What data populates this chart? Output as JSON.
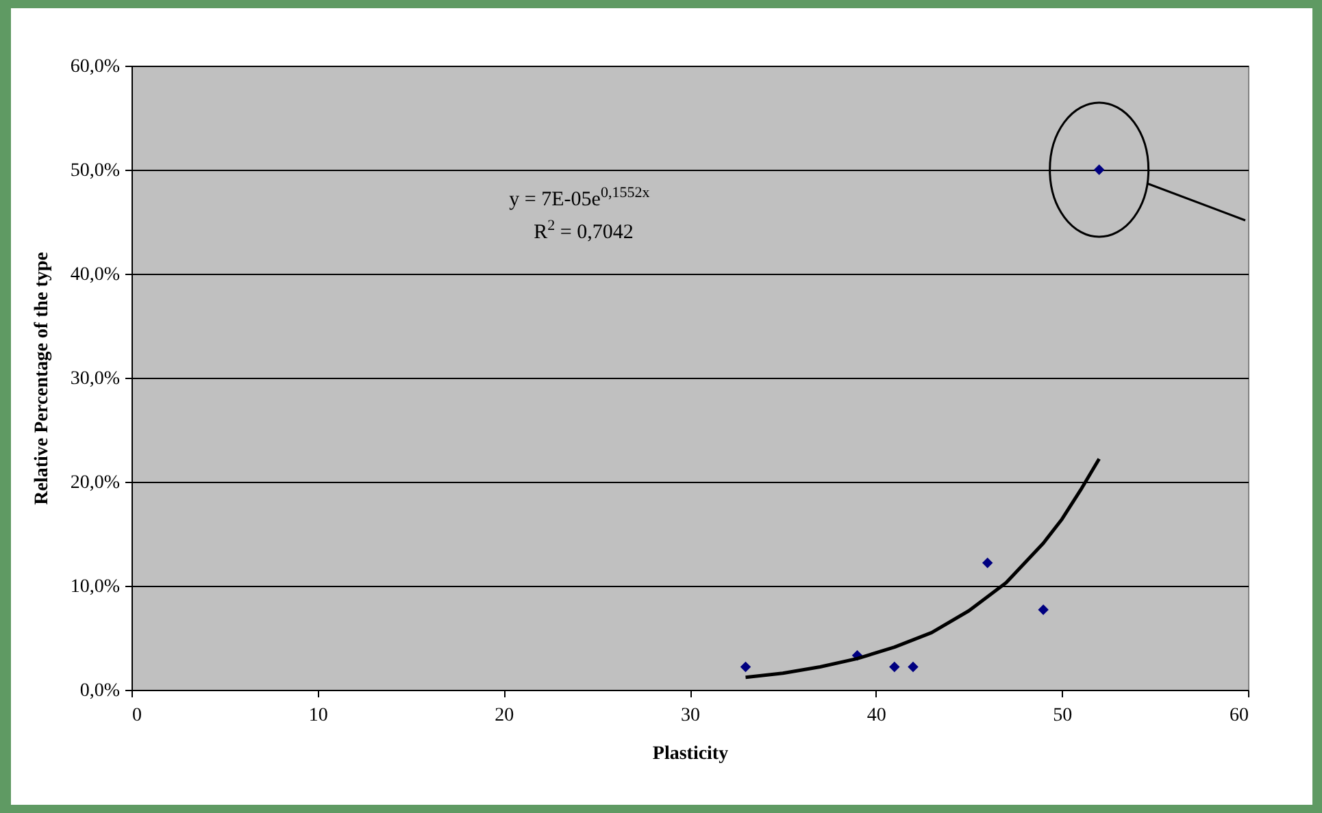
{
  "chart_data": {
    "type": "scatter",
    "xlabel": "Plasticity",
    "ylabel": "Relative Percentage of the type",
    "xlim": [
      0,
      60
    ],
    "xticks": [
      0,
      10,
      20,
      30,
      40,
      50,
      60
    ],
    "ylim": [
      0,
      60
    ],
    "yticks": [
      {
        "value": 0,
        "label": "0,0%"
      },
      {
        "value": 10,
        "label": "10,0%"
      },
      {
        "value": 20,
        "label": "20,0%"
      },
      {
        "value": 30,
        "label": "30,0%"
      },
      {
        "value": 40,
        "label": "40,0%"
      },
      {
        "value": 50,
        "label": "50,0%"
      },
      {
        "value": 60,
        "label": "60,0%"
      }
    ],
    "grid": "y",
    "series": [
      {
        "color": "#000080",
        "marker": "diamond",
        "x": [
          33,
          39,
          41,
          42,
          46,
          49,
          52
        ],
        "values": [
          2.2,
          3.3,
          2.2,
          2.2,
          12.2,
          7.7,
          50
        ]
      },
      {
        "type": "line",
        "color": "#000000",
        "marker": "none",
        "line_style": "solid",
        "x": [
          33,
          35,
          37,
          39,
          41,
          43,
          45,
          47,
          49,
          50,
          51,
          52
        ],
        "values": [
          1.2,
          1.6,
          2.2,
          3.0,
          4.1,
          5.5,
          7.6,
          10.3,
          14.1,
          16.4,
          19.2,
          22.2
        ]
      }
    ],
    "annotations": [
      "y = 7E-05e$^{0,1552x}$",
      "R$^{2}$ = 0,7042"
    ]
  }
}
